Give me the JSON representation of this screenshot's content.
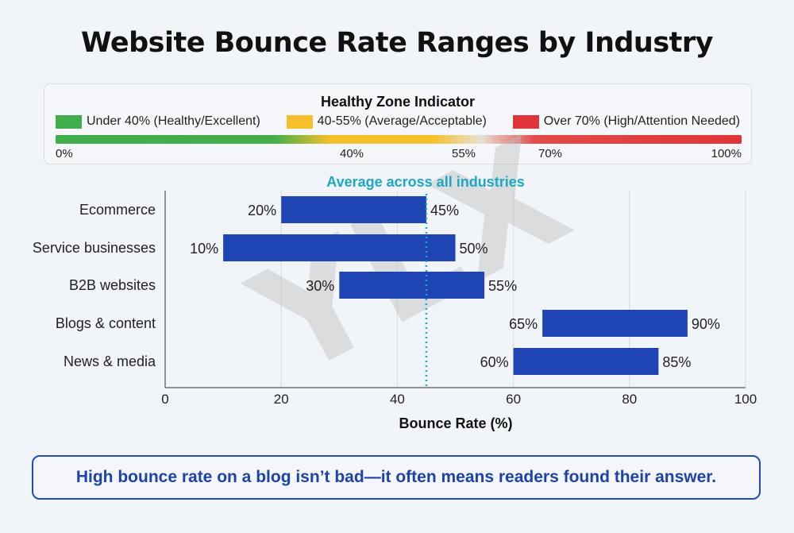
{
  "title": "Website Bounce Rate Ranges by Industry",
  "zone_indicator": {
    "title": "Healthy Zone Indicator",
    "legend": [
      {
        "label": "Under 40% (Healthy/Excellent)",
        "color": "#3fae4d"
      },
      {
        "label": "40-55% (Average/Acceptable)",
        "color": "#f5c02b"
      },
      {
        "label": "Over 70% (High/Attention Needed)",
        "color": "#e0343a"
      }
    ],
    "ticks": [
      {
        "value": 0,
        "label": "0%"
      },
      {
        "value": 40,
        "label": "40%"
      },
      {
        "value": 55,
        "label": "55%"
      },
      {
        "value": 70,
        "label": "70%"
      },
      {
        "value": 100,
        "label": "100%"
      }
    ]
  },
  "watermark": "YLX",
  "callout": "High bounce rate on a blog isn’t bad—it often means readers found their answer.",
  "chart_data": {
    "type": "bar",
    "orientation": "horizontal-range",
    "categories": [
      "Ecommerce",
      "Service businesses",
      "B2B websites",
      "Blogs & content",
      "News & media"
    ],
    "ranges": [
      [
        20,
        45
      ],
      [
        10,
        50
      ],
      [
        30,
        55
      ],
      [
        65,
        90
      ],
      [
        60,
        85
      ]
    ],
    "range_labels": [
      [
        "20%",
        "45%"
      ],
      [
        "10%",
        "50%"
      ],
      [
        "30%",
        "55%"
      ],
      [
        "65%",
        "90%"
      ],
      [
        "60%",
        "85%"
      ]
    ],
    "bar_color": "#1f45b5",
    "xlabel": "Bounce Rate (%)",
    "ylabel": "",
    "xlim": [
      0,
      100
    ],
    "xticks": [
      0,
      20,
      40,
      60,
      80,
      100
    ],
    "grid": true,
    "reference_line": {
      "value": 45,
      "label": "Average across all industries",
      "color": "#1ea7c4",
      "style": "dotted"
    }
  }
}
